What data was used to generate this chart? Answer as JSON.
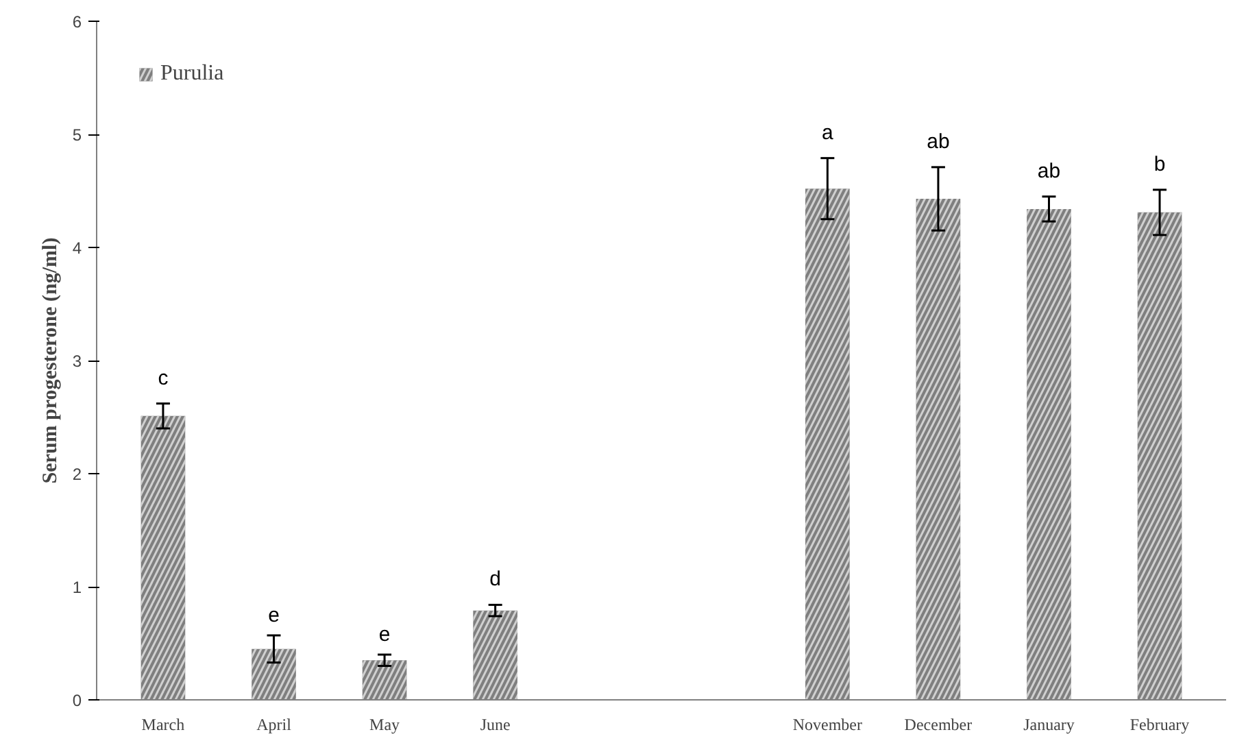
{
  "chart_data": {
    "type": "bar",
    "ylabel": "Serum progesterone (ng/ml)",
    "categories": [
      "March",
      "April",
      "May",
      "June",
      null,
      null,
      "November",
      "December",
      "January",
      "February"
    ],
    "series": [
      {
        "name": "Purulia",
        "color": "#7f7f7f",
        "values": [
          2.51,
          0.45,
          0.35,
          0.79,
          null,
          null,
          4.52,
          4.43,
          4.34,
          4.31
        ],
        "errors": [
          0.11,
          0.12,
          0.05,
          0.05,
          null,
          null,
          0.27,
          0.28,
          0.11,
          0.2
        ]
      }
    ],
    "ylim": [
      0,
      6
    ],
    "yticks": [
      0,
      1,
      2,
      3,
      4,
      5,
      6
    ],
    "grid": false,
    "legend": "top left",
    "annotations": [
      "c",
      "e",
      "e",
      "d",
      "a",
      "ab",
      "ab",
      "b"
    ]
  }
}
